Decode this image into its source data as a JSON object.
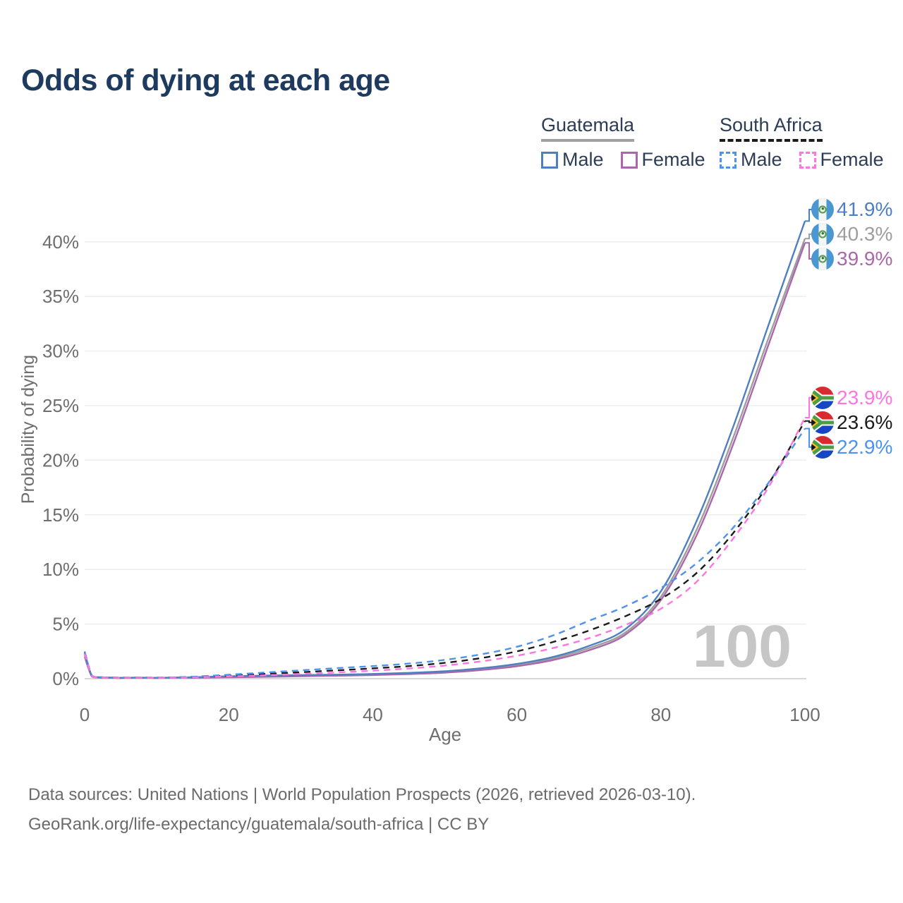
{
  "title": "Odds of dying at each age",
  "legend": {
    "groups": [
      {
        "label": "Guatemala",
        "line_style": "solid",
        "underline_color": "#a0a0a0",
        "items": [
          {
            "label": "Male",
            "color": "#4e7fc1"
          },
          {
            "label": "Female",
            "color": "#ab67aa"
          }
        ]
      },
      {
        "label": "South Africa",
        "line_style": "dashed",
        "underline_color": "#1b1b1b",
        "items": [
          {
            "label": "Male",
            "color": "#4d92ed"
          },
          {
            "label": "Female",
            "color": "#ff74e1"
          }
        ]
      }
    ]
  },
  "chart_data": {
    "type": "line",
    "title": "Odds of dying at each age",
    "xlabel": "Age",
    "ylabel": "Probability of dying",
    "x": [
      0,
      1,
      2,
      5,
      10,
      15,
      20,
      25,
      30,
      35,
      40,
      45,
      50,
      55,
      60,
      65,
      70,
      75,
      80,
      85,
      90,
      95,
      100
    ],
    "xticks": [
      0,
      20,
      40,
      60,
      80,
      100
    ],
    "yticks": [
      0,
      5,
      10,
      15,
      20,
      25,
      30,
      35,
      40
    ],
    "ytick_suffix": "%",
    "xlim": [
      0,
      100
    ],
    "ylim": [
      0,
      43.5
    ],
    "grid": "horizontal",
    "legend_position": "top-right",
    "watermark": "100",
    "series": [
      {
        "id": "guatemala-both",
        "name": "Guatemala (both sexes)",
        "country": "Guatemala",
        "flag": "guatemala",
        "color": "#9e9e9e",
        "dash": "solid",
        "end_label": "40.3%",
        "values": [
          2.2,
          0.22,
          0.12,
          0.07,
          0.07,
          0.11,
          0.18,
          0.23,
          0.28,
          0.32,
          0.38,
          0.47,
          0.61,
          0.87,
          1.25,
          1.85,
          2.8,
          4.2,
          7.5,
          13.7,
          22.0,
          31.3,
          40.3
        ]
      },
      {
        "id": "guatemala-female",
        "name": "Guatemala Female",
        "country": "Guatemala",
        "flag": "guatemala",
        "color": "#ab67aa",
        "dash": "solid",
        "end_label": "39.9%",
        "values": [
          2.0,
          0.2,
          0.1,
          0.06,
          0.06,
          0.08,
          0.13,
          0.17,
          0.22,
          0.27,
          0.33,
          0.42,
          0.55,
          0.79,
          1.14,
          1.7,
          2.6,
          4.0,
          7.2,
          13.2,
          21.4,
          30.7,
          39.9
        ]
      },
      {
        "id": "guatemala-male",
        "name": "Guatemala Male",
        "country": "Guatemala",
        "flag": "guatemala",
        "color": "#4e7fc1",
        "dash": "solid",
        "end_label": "41.9%",
        "values": [
          2.4,
          0.25,
          0.13,
          0.08,
          0.08,
          0.13,
          0.22,
          0.28,
          0.33,
          0.37,
          0.43,
          0.53,
          0.68,
          0.95,
          1.35,
          1.98,
          3.0,
          4.5,
          8.0,
          14.5,
          23.0,
          32.5,
          41.9
        ]
      },
      {
        "id": "south-africa-both",
        "name": "South Africa (both sexes)",
        "country": "South Africa",
        "flag": "south-africa",
        "color": "#1b1b1b",
        "dash": "dashed",
        "end_label": "23.6%",
        "values": [
          2.4,
          0.28,
          0.14,
          0.09,
          0.09,
          0.15,
          0.28,
          0.43,
          0.59,
          0.76,
          0.94,
          1.15,
          1.45,
          1.88,
          2.5,
          3.35,
          4.4,
          5.7,
          7.3,
          9.7,
          13.3,
          17.9,
          23.6
        ]
      },
      {
        "id": "south-africa-male",
        "name": "South Africa Male",
        "country": "South Africa",
        "flag": "south-africa",
        "color": "#4d92ed",
        "dash": "dashed",
        "end_label": "22.9%",
        "values": [
          2.5,
          0.3,
          0.15,
          0.1,
          0.1,
          0.18,
          0.36,
          0.56,
          0.76,
          0.96,
          1.15,
          1.38,
          1.72,
          2.22,
          2.92,
          3.95,
          5.3,
          6.6,
          8.3,
          10.6,
          13.8,
          18.0,
          22.9
        ]
      },
      {
        "id": "south-africa-female",
        "name": "South Africa Female",
        "country": "South Africa",
        "flag": "south-africa",
        "color": "#ff74e1",
        "dash": "dashed",
        "end_label": "23.9%",
        "values": [
          2.3,
          0.26,
          0.13,
          0.08,
          0.08,
          0.12,
          0.21,
          0.31,
          0.43,
          0.57,
          0.73,
          0.93,
          1.2,
          1.58,
          2.1,
          2.8,
          3.7,
          4.9,
          6.4,
          8.9,
          12.8,
          17.6,
          23.9
        ]
      }
    ]
  },
  "footer": {
    "line1": "Data sources: United Nations | World Population Prospects (2026, retrieved 2026-03-10).",
    "line2": "GeoRank.org/life-expectancy/guatemala/south-africa | CC BY"
  }
}
